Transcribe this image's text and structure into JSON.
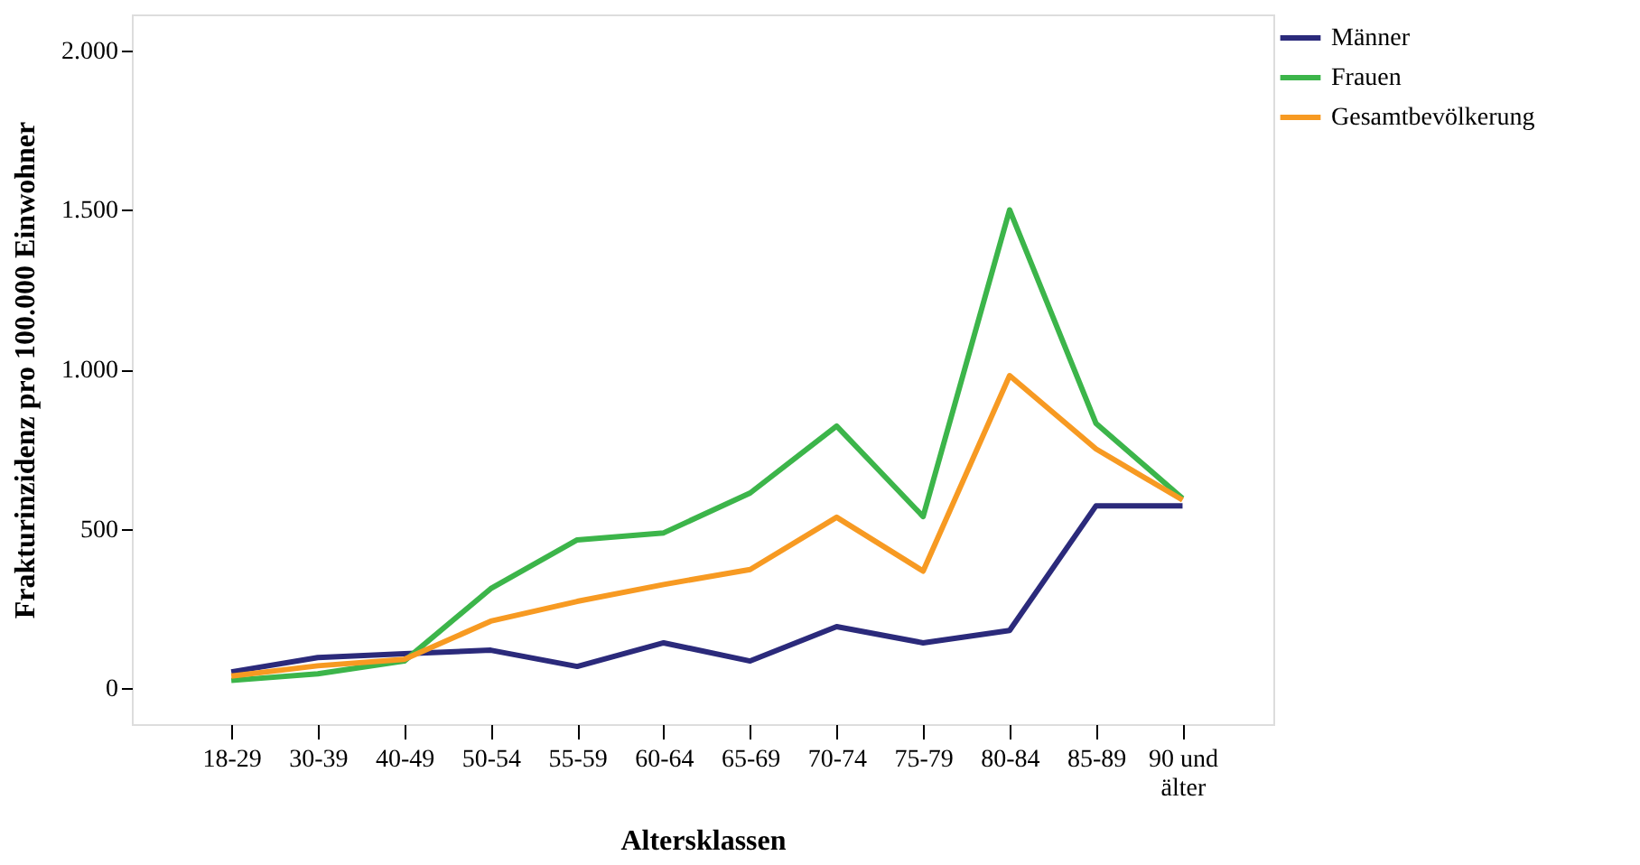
{
  "chart_data": {
    "type": "line",
    "xlabel": "Altersklassen",
    "ylabel": "Frakturinzidenz pro 100.000 Einwohner",
    "categories": [
      "18-29",
      "30-39",
      "40-49",
      "50-54",
      "55-59",
      "60-64",
      "65-69",
      "70-74",
      "75-79",
      "80-84",
      "85-89",
      "90 und älter"
    ],
    "series": [
      {
        "name": "Männer",
        "color": "#2b2a7b",
        "values": [
          51,
          96,
          108,
          119,
          68,
          142,
          85,
          193,
          142,
          181,
          572,
          572
        ]
      },
      {
        "name": "Frauen",
        "color": "#3cb54a",
        "values": [
          24,
          45,
          85,
          312,
          465,
          487,
          612,
          822,
          538,
          1500,
          830,
          595
        ]
      },
      {
        "name": "Gesamtbevölkerung",
        "color": "#f79a22",
        "values": [
          38,
          70,
          90,
          210,
          272,
          325,
          372,
          536,
          367,
          980,
          750,
          590
        ]
      }
    ],
    "ylim": [
      -113,
      2113
    ],
    "yticks": [
      {
        "value": 0,
        "label": "0"
      },
      {
        "value": 500,
        "label": "500"
      },
      {
        "value": 1000,
        "label": "1.000"
      },
      {
        "value": 1500,
        "label": "1.500"
      },
      {
        "value": 2000,
        "label": "2.000"
      }
    ],
    "grid": false,
    "legend": "top right",
    "line_style": "solid",
    "marker": "none"
  }
}
